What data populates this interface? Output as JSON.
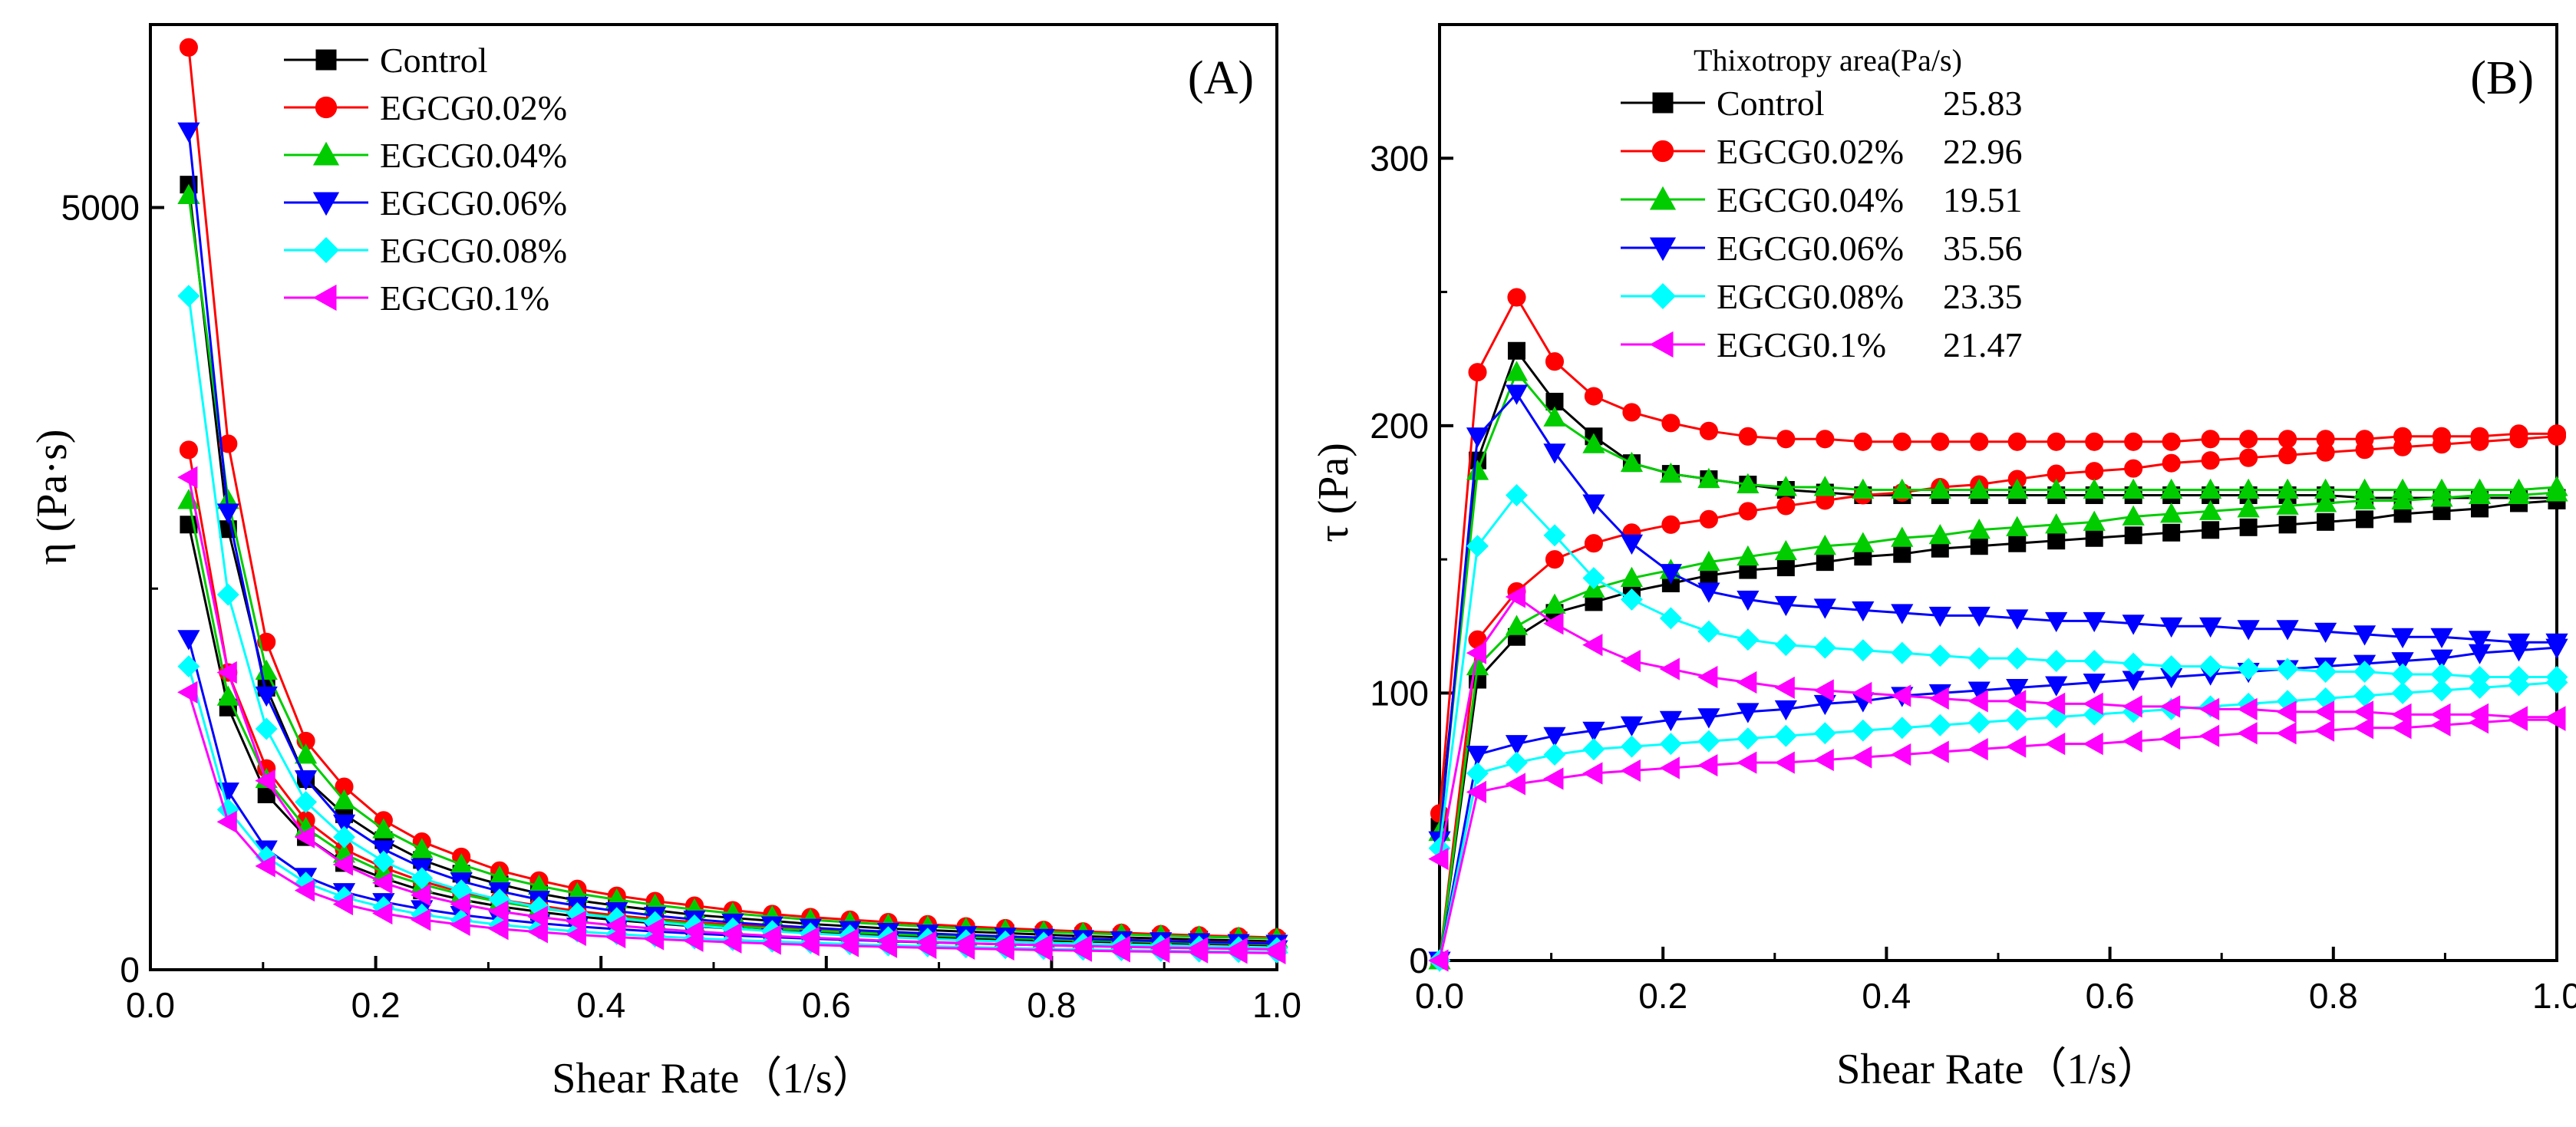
{
  "chart_data": [
    {
      "type": "line",
      "panel_label": "(A)",
      "title": "",
      "xlabel": "Shear Rate（1/s）",
      "ylabel": "η (Pa·s)",
      "xlim": [
        0,
        1.0
      ],
      "ylim": [
        0,
        6200
      ],
      "xticks": [
        0.0,
        0.2,
        0.4,
        0.6,
        0.8,
        1.0
      ],
      "xtick_labels": [
        "0.0",
        "0.2",
        "0.4",
        "0.6",
        "0.8",
        "1.0"
      ],
      "yticks": [
        0,
        5000
      ],
      "ytick_labels": [
        "0",
        "5000"
      ],
      "legend_position": "top-center",
      "x": [
        0.034,
        0.069,
        0.103,
        0.138,
        0.172,
        0.207,
        0.241,
        0.276,
        0.31,
        0.345,
        0.379,
        0.414,
        0.448,
        0.483,
        0.517,
        0.552,
        0.586,
        0.621,
        0.655,
        0.69,
        0.724,
        0.759,
        0.793,
        0.828,
        0.862,
        0.897,
        0.931,
        0.966,
        1.0
      ],
      "series": [
        {
          "name": "Control",
          "color": "#000000",
          "marker": "square",
          "up": [
            5150,
            2890,
            1850,
            1250,
            1020,
            850,
            720,
            630,
            560,
            500,
            455,
            420,
            390,
            360,
            340,
            320,
            300,
            285,
            270,
            260,
            250,
            240,
            230,
            220,
            212,
            205,
            198,
            192,
            185
          ],
          "down": [
            2920,
            1720,
            1150,
            870,
            700,
            600,
            520,
            460,
            415,
            380,
            350,
            325,
            305,
            285,
            270,
            256,
            244,
            233,
            223,
            214,
            206,
            199,
            192,
            186,
            180,
            175,
            170,
            165,
            160
          ]
        },
        {
          "name": "EGCG0.02%",
          "color": "#ff0000",
          "marker": "circle",
          "up": [
            6050,
            3450,
            2150,
            1500,
            1200,
            980,
            840,
            740,
            650,
            585,
            530,
            485,
            450,
            420,
            390,
            365,
            345,
            328,
            312,
            298,
            284,
            272,
            261,
            251,
            242,
            233,
            225,
            218,
            211
          ],
          "down": [
            3410,
            1950,
            1320,
            980,
            790,
            670,
            580,
            510,
            460,
            420,
            385,
            356,
            332,
            312,
            295,
            280,
            267,
            255,
            244,
            234,
            225,
            217,
            209,
            202,
            196,
            190,
            184,
            179,
            174
          ]
        },
        {
          "name": "EGCG0.04%",
          "color": "#00cc00",
          "marker": "triangle-up",
          "up": [
            5080,
            3080,
            1960,
            1410,
            1110,
            920,
            790,
            690,
            610,
            550,
            500,
            460,
            425,
            395,
            370,
            348,
            328,
            311,
            296,
            283,
            270,
            259,
            249,
            240,
            232,
            224,
            217,
            210,
            204
          ],
          "down": [
            3080,
            1790,
            1250,
            930,
            760,
            640,
            560,
            495,
            445,
            405,
            372,
            345,
            322,
            302,
            285,
            270,
            257,
            245,
            234,
            225,
            216,
            208,
            201,
            194,
            188,
            182,
            177,
            172,
            167
          ]
        },
        {
          "name": "EGCG0.06%",
          "color": "#0000ff",
          "marker": "triangle-down",
          "up": [
            5500,
            3000,
            1800,
            1250,
            960,
            790,
            670,
            580,
            515,
            460,
            420,
            385,
            355,
            330,
            310,
            292,
            276,
            262,
            249,
            238,
            228,
            218,
            210,
            202,
            195,
            188,
            182,
            176,
            171
          ],
          "down": [
            2170,
            1170,
            790,
            610,
            510,
            445,
            398,
            360,
            330,
            305,
            284,
            266,
            251,
            237,
            225,
            214,
            204,
            195,
            187,
            180,
            173,
            167,
            161,
            156,
            151,
            147,
            143,
            139,
            135
          ]
        },
        {
          "name": "EGCG0.08%",
          "color": "#00ffff",
          "marker": "diamond",
          "up": [
            4420,
            2460,
            1580,
            1100,
            870,
            710,
            600,
            520,
            460,
            410,
            370,
            338,
            312,
            290,
            270,
            253,
            238,
            225,
            213,
            203,
            193,
            185,
            177,
            170,
            163,
            157,
            152,
            147,
            142
          ],
          "down": [
            1990,
            1050,
            740,
            570,
            475,
            410,
            362,
            325,
            295,
            271,
            251,
            234,
            219,
            206,
            195,
            185,
            176,
            168,
            160,
            154,
            148,
            142,
            137,
            132,
            128,
            124,
            120,
            117,
            114
          ]
        },
        {
          "name": "EGCG0.1%",
          "color": "#ff00ff",
          "marker": "triangle-left",
          "up": [
            3230,
            1950,
            1240,
            870,
            690,
            570,
            490,
            430,
            383,
            346,
            315,
            290,
            269,
            251,
            236,
            222,
            210,
            200,
            190,
            182,
            174,
            167,
            161,
            155,
            150,
            145,
            141,
            137,
            133
          ],
          "down": [
            1820,
            970,
            680,
            520,
            430,
            370,
            328,
            295,
            268,
            247,
            229,
            214,
            201,
            190,
            180,
            171,
            163,
            156,
            150,
            144,
            139,
            134,
            129,
            125,
            121,
            118,
            115,
            112,
            109
          ]
        }
      ]
    },
    {
      "type": "line",
      "panel_label": "(B)",
      "title": "",
      "xlabel": "Shear Rate（1/s）",
      "ylabel": "τ (Pa)",
      "xlim": [
        0,
        1.0
      ],
      "ylim": [
        0,
        350
      ],
      "xticks": [
        0.0,
        0.2,
        0.4,
        0.6,
        0.8,
        1.0
      ],
      "xtick_labels": [
        "0.0",
        "0.2",
        "0.4",
        "0.6",
        "0.8",
        "1.0"
      ],
      "yticks": [
        0,
        100,
        200,
        300
      ],
      "ytick_labels": [
        "0",
        "100",
        "200",
        "300"
      ],
      "legend_position": "top-center",
      "legend_header": "Thixotropy area(Pa/s)",
      "x": [
        0.0,
        0.034,
        0.069,
        0.103,
        0.138,
        0.172,
        0.207,
        0.241,
        0.276,
        0.31,
        0.345,
        0.379,
        0.414,
        0.448,
        0.483,
        0.517,
        0.552,
        0.586,
        0.621,
        0.655,
        0.69,
        0.724,
        0.759,
        0.793,
        0.828,
        0.862,
        0.897,
        0.931,
        0.966,
        1.0
      ],
      "series": [
        {
          "name": "Control",
          "area": "25.83",
          "color": "#000000",
          "marker": "square",
          "up": [
            50,
            187,
            228,
            209,
            196,
            186,
            182,
            180,
            178,
            176,
            175,
            174,
            174,
            174,
            174,
            174,
            174,
            174,
            174,
            174,
            174,
            174,
            174,
            174,
            173,
            173,
            173,
            173,
            173,
            173
          ],
          "down": [
            0,
            105,
            121,
            130,
            134,
            138,
            141,
            144,
            146,
            147,
            149,
            151,
            152,
            154,
            155,
            156,
            157,
            158,
            159,
            160,
            161,
            162,
            163,
            164,
            165,
            167,
            168,
            169,
            171,
            172
          ]
        },
        {
          "name": "EGCG0.02%",
          "area": "22.96",
          "color": "#ff0000",
          "marker": "circle",
          "up": [
            55,
            220,
            248,
            224,
            211,
            205,
            201,
            198,
            196,
            195,
            195,
            194,
            194,
            194,
            194,
            194,
            194,
            194,
            194,
            194,
            195,
            195,
            195,
            195,
            195,
            196,
            196,
            196,
            197,
            197
          ],
          "down": [
            0,
            120,
            138,
            150,
            156,
            160,
            163,
            165,
            168,
            170,
            172,
            174,
            175,
            177,
            178,
            180,
            182,
            183,
            184,
            186,
            187,
            188,
            189,
            190,
            191,
            192,
            193,
            194,
            195,
            196
          ]
        },
        {
          "name": "EGCG0.04%",
          "area": "19.51",
          "color": "#00cc00",
          "marker": "triangle-up",
          "up": [
            48,
            183,
            220,
            203,
            193,
            186,
            182,
            180,
            178,
            177,
            177,
            176,
            176,
            176,
            176,
            176,
            176,
            176,
            176,
            176,
            176,
            176,
            176,
            176,
            176,
            176,
            176,
            176,
            176,
            177
          ],
          "down": [
            0,
            110,
            125,
            133,
            139,
            143,
            146,
            149,
            151,
            153,
            155,
            156,
            158,
            159,
            161,
            162,
            163,
            164,
            166,
            167,
            168,
            169,
            170,
            171,
            172,
            172,
            173,
            174,
            174,
            175
          ]
        },
        {
          "name": "EGCG0.06%",
          "area": "35.56",
          "color": "#0000ff",
          "marker": "triangle-down",
          "up": [
            45,
            196,
            212,
            190,
            171,
            156,
            145,
            138,
            135,
            133,
            132,
            131,
            130,
            129,
            129,
            128,
            127,
            127,
            126,
            125,
            125,
            124,
            124,
            123,
            122,
            121,
            121,
            120,
            119,
            119
          ],
          "down": [
            0,
            77,
            81,
            84,
            86,
            88,
            90,
            91,
            93,
            94,
            96,
            97,
            99,
            100,
            101,
            102,
            103,
            104,
            105,
            106,
            107,
            108,
            109,
            110,
            111,
            112,
            113,
            115,
            116,
            117
          ]
        },
        {
          "name": "EGCG0.08%",
          "area": "23.35",
          "color": "#00ffff",
          "marker": "diamond",
          "up": [
            42,
            155,
            174,
            159,
            143,
            135,
            128,
            123,
            120,
            118,
            117,
            116,
            115,
            114,
            113,
            113,
            112,
            112,
            111,
            110,
            110,
            109,
            109,
            108,
            108,
            107,
            107,
            106,
            106,
            106
          ],
          "down": [
            0,
            70,
            74,
            77,
            79,
            80,
            81,
            82,
            83,
            84,
            85,
            86,
            87,
            88,
            89,
            90,
            91,
            92,
            93,
            94,
            95,
            96,
            97,
            98,
            99,
            100,
            101,
            102,
            103,
            104
          ]
        },
        {
          "name": "EGCG0.1%",
          "area": "21.47",
          "color": "#ff00ff",
          "marker": "triangle-left",
          "up": [
            38,
            115,
            136,
            126,
            118,
            112,
            109,
            106,
            104,
            102,
            101,
            100,
            99,
            98,
            97,
            97,
            96,
            96,
            95,
            95,
            94,
            94,
            93,
            93,
            93,
            92,
            92,
            92,
            91,
            91
          ],
          "down": [
            0,
            63,
            66,
            68,
            70,
            71,
            72,
            73,
            74,
            74,
            75,
            76,
            77,
            78,
            79,
            80,
            81,
            81,
            82,
            83,
            84,
            85,
            85,
            86,
            87,
            87,
            88,
            89,
            90,
            90
          ]
        }
      ]
    }
  ]
}
